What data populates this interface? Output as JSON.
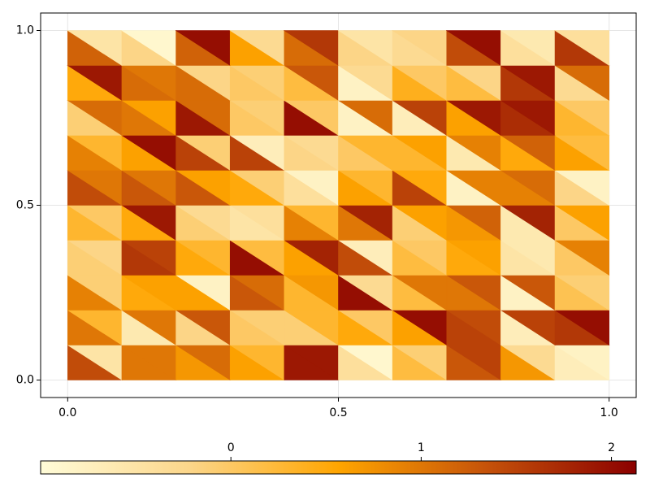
{
  "chart_data": {
    "type": "tripcolor",
    "x": [
      0,
      0.1,
      0.2,
      0.3,
      0.4,
      0.5,
      0.6,
      0.7,
      0.8,
      0.9,
      1
    ],
    "y": [
      0,
      0.1,
      0.2,
      0.3,
      0.4,
      0.5,
      0.6,
      0.7,
      0.8,
      0.9,
      1
    ],
    "values": [
      [
        [
          1.4,
          -0.5
        ],
        [
          1.0,
          1.0
        ],
        [
          0.7,
          1.1
        ],
        [
          0.6,
          0.3
        ],
        [
          1.9,
          1.9
        ],
        [
          -0.4,
          -0.9
        ],
        [
          0.2,
          -0.1
        ],
        [
          1.3,
          1.5
        ],
        [
          0.7,
          -0.3
        ],
        [
          -0.7,
          -0.8
        ]
      ],
      [
        [
          1.0,
          0.3
        ],
        [
          -0.6,
          1.0
        ],
        [
          -0.2,
          1.3
        ],
        [
          0.0,
          -0.1
        ],
        [
          -0.1,
          0.3
        ],
        [
          0.5,
          0.0
        ],
        [
          0.6,
          2.0
        ],
        [
          1.5,
          1.4
        ],
        [
          -0.7,
          1.5
        ],
        [
          1.6,
          2.0
        ]
      ],
      [
        [
          0.9,
          -0.1
        ],
        [
          0.5,
          0.6
        ],
        [
          0.6,
          -0.8
        ],
        [
          1.3,
          1.1
        ],
        [
          0.3,
          0.7
        ],
        [
          2.0,
          -0.3
        ],
        [
          0.2,
          1.0
        ],
        [
          1.0,
          1.3
        ],
        [
          -0.8,
          1.3
        ],
        [
          0.1,
          -0.1
        ]
      ],
      [
        [
          -0.1,
          -0.2
        ],
        [
          1.6,
          1.5
        ],
        [
          0.5,
          0.3
        ],
        [
          2.0,
          0.2
        ],
        [
          0.6,
          1.8
        ],
        [
          1.4,
          -0.7
        ],
        [
          0.2,
          0.0
        ],
        [
          0.5,
          0.6
        ],
        [
          -0.5,
          -0.6
        ],
        [
          0.0,
          0.9
        ]
      ],
      [
        [
          0.3,
          0.0
        ],
        [
          0.5,
          1.9
        ],
        [
          -0.1,
          -0.3
        ],
        [
          -0.5,
          -0.4
        ],
        [
          0.9,
          0.3
        ],
        [
          1.0,
          1.8
        ],
        [
          -0.1,
          0.6
        ],
        [
          0.7,
          1.2
        ],
        [
          -0.6,
          1.8
        ],
        [
          0.0,
          0.6
        ]
      ],
      [
        [
          1.4,
          1.0
        ],
        [
          1.3,
          1.0
        ],
        [
          1.3,
          0.6
        ],
        [
          0.5,
          -0.1
        ],
        [
          -0.4,
          -0.8
        ],
        [
          0.6,
          0.3
        ],
        [
          1.5,
          0.5
        ],
        [
          -0.8,
          0.9
        ],
        [
          0.9,
          1.1
        ],
        [
          -0.2,
          -0.8
        ]
      ],
      [
        [
          0.9,
          0.3
        ],
        [
          0.6,
          2.0
        ],
        [
          1.5,
          -0.1
        ],
        [
          1.5,
          -0.7
        ],
        [
          -0.2,
          -0.3
        ],
        [
          0.0,
          0.3
        ],
        [
          0.3,
          0.6
        ],
        [
          -0.6,
          0.9
        ],
        [
          0.5,
          1.2
        ],
        [
          0.6,
          0.2
        ]
      ],
      [
        [
          -0.1,
          1.1
        ],
        [
          1.0,
          0.6
        ],
        [
          1.9,
          1.1
        ],
        [
          0.0,
          -0.1
        ],
        [
          2.0,
          0.0
        ],
        [
          -0.8,
          1.1
        ],
        [
          -0.7,
          1.5
        ],
        [
          0.6,
          1.9
        ],
        [
          1.7,
          1.9
        ],
        [
          0.3,
          0.0
        ]
      ],
      [
        [
          0.5,
          1.9
        ],
        [
          1.1,
          1.0
        ],
        [
          1.1,
          -0.2
        ],
        [
          0.0,
          -0.1
        ],
        [
          0.2,
          1.3
        ],
        [
          -0.8,
          -0.3
        ],
        [
          0.4,
          0.0
        ],
        [
          0.2,
          -0.2
        ],
        [
          1.6,
          1.9
        ],
        [
          -0.3,
          1.1
        ]
      ],
      [
        [
          1.2,
          -0.5
        ],
        [
          -0.2,
          -0.9
        ],
        [
          1.2,
          2.0
        ],
        [
          0.6,
          -0.3
        ],
        [
          1.1,
          1.6
        ],
        [
          -0.2,
          -0.5
        ],
        [
          -0.3,
          -0.2
        ],
        [
          1.4,
          2.0
        ],
        [
          -0.4,
          -0.6
        ],
        [
          1.6,
          -0.4
        ]
      ]
    ],
    "xlim": [
      -0.05,
      1.05
    ],
    "ylim": [
      -0.05,
      1.05
    ],
    "xticks": [
      {
        "value": 0,
        "label": "0.0"
      },
      {
        "value": 0.5,
        "label": "0.5"
      },
      {
        "value": 1,
        "label": "1.0"
      }
    ],
    "yticks": [
      {
        "value": 0,
        "label": "0.0"
      },
      {
        "value": 0.5,
        "label": "0.5"
      },
      {
        "value": 1,
        "label": "1.0"
      }
    ],
    "grid": true,
    "colormap": [
      "#fffcd8",
      "#fcd68a",
      "#ffa500",
      "#c5520a",
      "#8b0000"
    ],
    "clim": [
      -1.0,
      2.13
    ],
    "cticks": [
      0,
      1,
      2
    ]
  }
}
